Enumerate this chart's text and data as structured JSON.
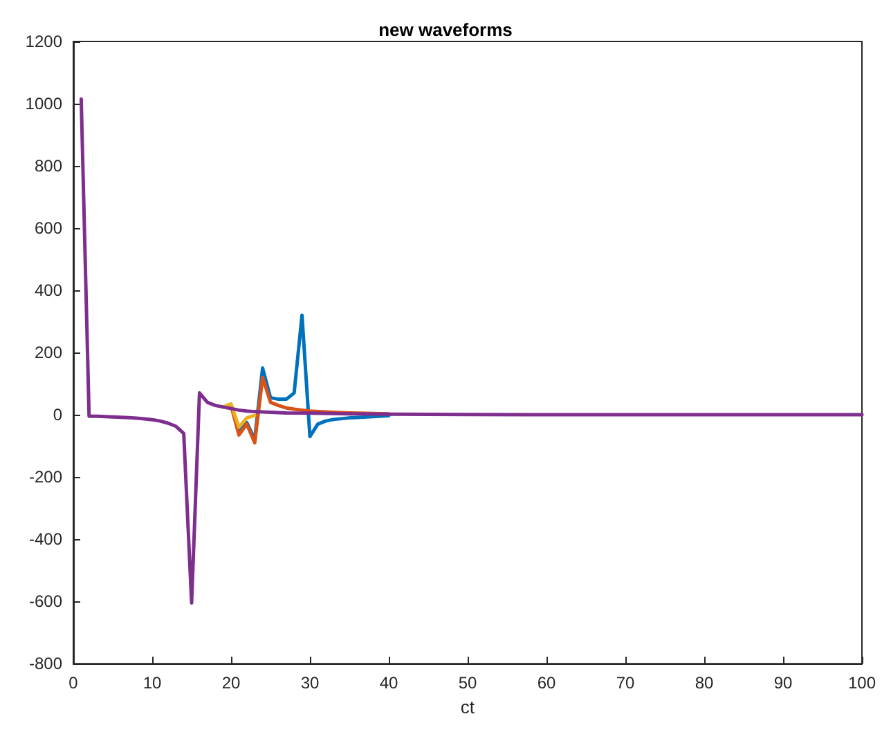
{
  "chart_data": {
    "type": "line",
    "title": "new waveforms",
    "xlabel": "ct",
    "xlim": [
      0,
      100
    ],
    "xticks": [
      0,
      10,
      20,
      30,
      40,
      50,
      60,
      70,
      80,
      90,
      100
    ],
    "ylim": [
      -800,
      1200
    ],
    "yticks": [
      -800,
      -600,
      -400,
      -200,
      0,
      200,
      400,
      600,
      800,
      1000,
      1200
    ],
    "grid": false,
    "marker": "none",
    "line_style": "solid",
    "series": [
      {
        "color": "#0072bd",
        "x": [
          21,
          22,
          23,
          24,
          25,
          26,
          27,
          28,
          29,
          30,
          31,
          32,
          33,
          35,
          40
        ],
        "values": [
          -55,
          -25,
          -80,
          150,
          55,
          50,
          50,
          70,
          320,
          -70,
          -30,
          -20,
          -15,
          -10,
          -3
        ]
      },
      {
        "color": "#d95319",
        "x": [
          19,
          20,
          21,
          22,
          23,
          24,
          25,
          26,
          27,
          28,
          29,
          30,
          32,
          35,
          40
        ],
        "values": [
          25,
          30,
          -65,
          -30,
          -90,
          120,
          40,
          30,
          22,
          18,
          15,
          12,
          9,
          6,
          3
        ]
      },
      {
        "color": "#edb120",
        "x": [
          19,
          20,
          21,
          22,
          23
        ],
        "values": [
          25,
          35,
          -40,
          -10,
          -2
        ]
      },
      {
        "color": "#7e2f8e",
        "x": [
          1,
          2,
          3,
          4,
          5,
          6,
          7,
          8,
          9,
          10,
          11,
          12,
          13,
          14,
          15,
          16,
          17,
          18,
          19,
          20,
          21,
          22,
          23,
          24,
          25,
          27,
          30,
          35,
          40,
          50,
          60,
          70,
          80,
          90,
          100
        ],
        "values": [
          1015,
          -5,
          -5,
          -6,
          -7,
          -8,
          -9,
          -11,
          -13,
          -16,
          -20,
          -27,
          -37,
          -60,
          -605,
          70,
          40,
          30,
          25,
          20,
          15,
          12,
          10,
          9,
          8,
          6,
          5,
          3,
          2,
          1,
          0,
          0,
          0,
          0,
          0
        ]
      }
    ]
  }
}
